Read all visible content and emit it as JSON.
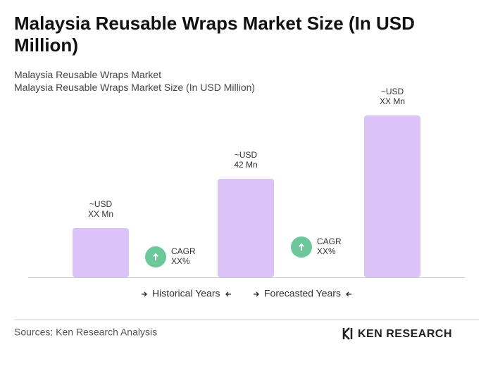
{
  "chart_data": {
    "type": "bar",
    "title": "Malaysia Reusable Wraps Market Size (In USD Million)",
    "subtitle": [
      "Malaysia Reusable Wraps Market",
      "Malaysia Reusable Wraps Market Size (In USD Million)"
    ],
    "categories": [
      null,
      null,
      null
    ],
    "values": [
      21,
      42,
      69
    ],
    "value_labels": [
      [
        "~USD",
        "XX Mn"
      ],
      [
        "~USD",
        "42 Mn"
      ],
      [
        "~USD",
        "XX Mn"
      ]
    ],
    "color": "#dcc3f7",
    "annotations": [
      {
        "label": "CAGR",
        "value": "XX%"
      },
      {
        "label": "CAGR",
        "value": "XX%"
      }
    ],
    "annotation_color": "#6cc79a",
    "periods": [
      "Historical Years",
      "Forecasted Years"
    ],
    "source": "Sources: Ken Research Analysis",
    "logo": "KEN RESEARCH"
  }
}
